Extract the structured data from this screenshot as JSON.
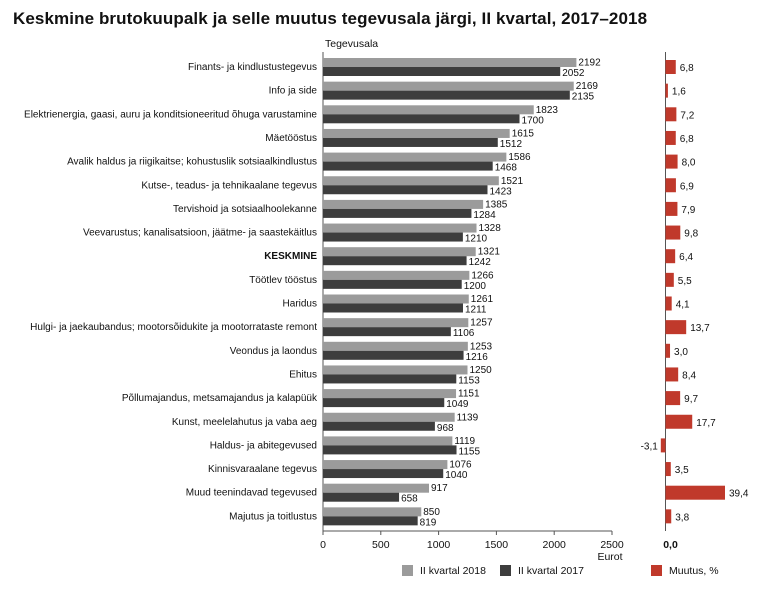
{
  "chart_data": {
    "type": "bar",
    "title": "Keskmine brutokuupalk ja selle muutus tegevusala järgi, II kvartal, 2017–2018",
    "category_header": "Tegevusala",
    "xlabel": "Eurot",
    "xlim": [
      0,
      2500
    ],
    "xticks": [
      "0",
      "500",
      "1000",
      "1500",
      "2000",
      "2500"
    ],
    "change_zero_label": "0,0",
    "categories": [
      "Finants- ja kindlustustegevus",
      "Info ja side",
      "Elektrienergia, gaasi, auru ja konditsioneeritud õhuga varustamine",
      "Mäetööstus",
      "Avalik haldus ja riigikaitse; kohustuslik sotsiaalkindlustus",
      "Kutse-, teadus- ja tehnikaalane tegevus",
      "Tervishoid ja sotsiaalhoolekanne",
      "Veevarustus; kanalisatsioon, jäätme- ja saastekäitlus",
      "KESKMINE",
      "Töötlev tööstus",
      "Haridus",
      "Hulgi- ja jaekaubandus; mootorsõidukite ja mootorrataste remont",
      "Veondus ja laondus",
      "Ehitus",
      "Põllumajandus, metsamajandus ja kalapüük",
      "Kunst, meelelahutus ja vaba aeg",
      "Haldus- ja abitegevused",
      "Kinnisvaraalane tegevus",
      "Muud teenindavad tegevused",
      "Majutus ja toitlustus"
    ],
    "bold_category": "KESKMINE",
    "series": [
      {
        "name": "II kvartal 2018",
        "values": [
          2192,
          2169,
          1823,
          1615,
          1586,
          1521,
          1385,
          1328,
          1321,
          1266,
          1261,
          1257,
          1253,
          1250,
          1151,
          1139,
          1119,
          1076,
          917,
          850
        ]
      },
      {
        "name": "II kvartal 2017",
        "values": [
          2052,
          2135,
          1700,
          1512,
          1468,
          1423,
          1284,
          1210,
          1242,
          1200,
          1211,
          1106,
          1216,
          1153,
          1049,
          968,
          1155,
          1040,
          658,
          819
        ]
      }
    ],
    "change": {
      "name": "Muutus, %",
      "values": [
        6.8,
        1.6,
        7.2,
        6.8,
        8.0,
        6.9,
        7.9,
        9.8,
        6.4,
        5.5,
        4.1,
        13.7,
        3.0,
        8.4,
        9.7,
        17.7,
        -3.1,
        3.5,
        39.4,
        3.8
      ],
      "labels": [
        "6,8",
        "1,6",
        "7,2",
        "6,8",
        "8,0",
        "6,9",
        "7,9",
        "9,8",
        "6,4",
        "5,5",
        "4,1",
        "13,7",
        "3,0",
        "8,4",
        "9,7",
        "17,7",
        "-3,1",
        "3,5",
        "39,4",
        "3,8"
      ]
    },
    "colors": {
      "s2018": "#9b9b9b",
      "s2017": "#3d3d3d",
      "change": "#c0392b",
      "axis": "#555555"
    }
  }
}
